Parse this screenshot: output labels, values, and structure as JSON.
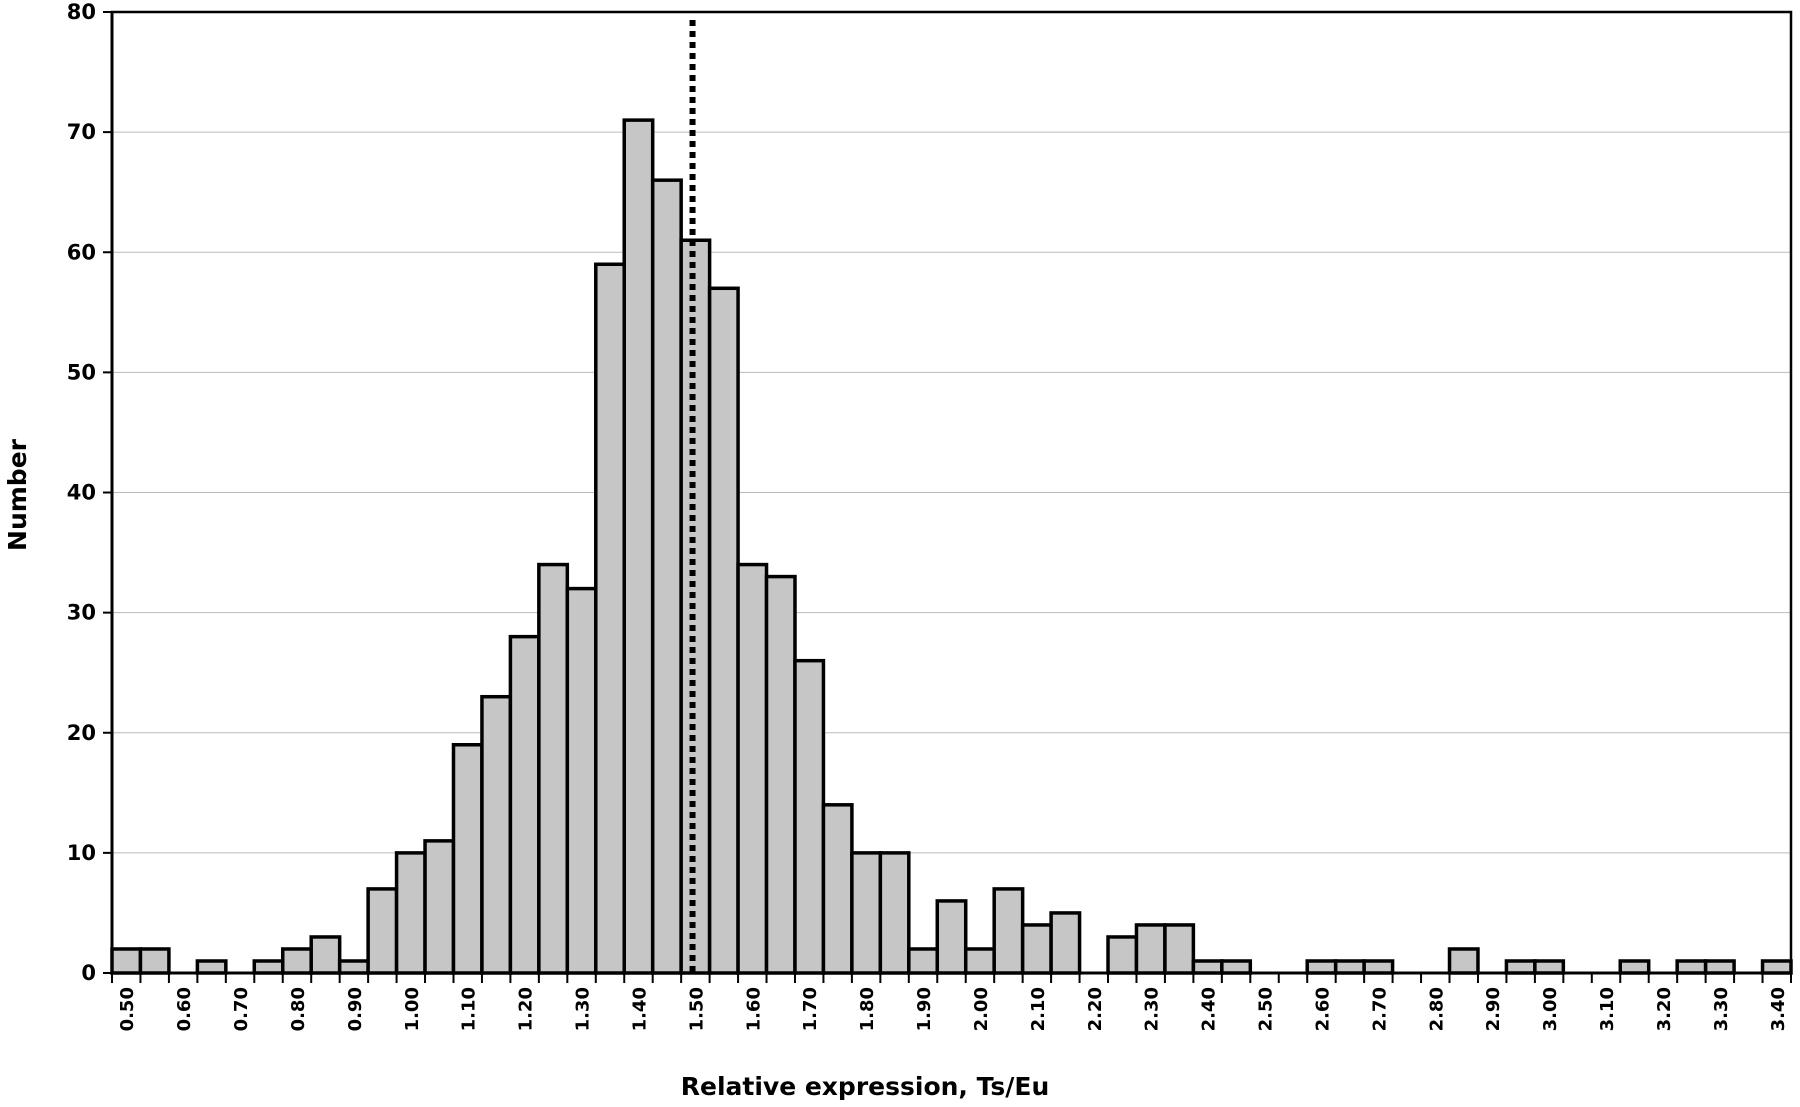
{
  "chart_data": {
    "type": "bar",
    "subtype": "histogram",
    "title": "",
    "xlabel": "Relative expression, Ts/Eu",
    "ylabel": "Number",
    "ylim": [
      0,
      80
    ],
    "xlim": [
      0.475,
      3.425
    ],
    "bin_width": 0.05,
    "grid": true,
    "legend": "none",
    "y_ticks": [
      "0",
      "10",
      "20",
      "30",
      "40",
      "50",
      "60",
      "70",
      "80"
    ],
    "x_ticks": [
      "0.50",
      "0.60",
      "0.70",
      "0.80",
      "0.90",
      "1.00",
      "1.10",
      "1.20",
      "1.30",
      "1.40",
      "1.50",
      "1.60",
      "1.70",
      "1.80",
      "1.90",
      "2.00",
      "2.10",
      "2.20",
      "2.30",
      "2.40",
      "2.50",
      "2.60",
      "2.70",
      "2.80",
      "2.90",
      "3.00",
      "3.10",
      "3.20",
      "3.30",
      "3.40"
    ],
    "bins": [
      0.5,
      0.55,
      0.6,
      0.65,
      0.7,
      0.75,
      0.8,
      0.85,
      0.9,
      0.95,
      1.0,
      1.05,
      1.1,
      1.15,
      1.2,
      1.25,
      1.3,
      1.35,
      1.4,
      1.45,
      1.5,
      1.55,
      1.6,
      1.65,
      1.7,
      1.75,
      1.8,
      1.85,
      1.9,
      1.95,
      2.0,
      2.05,
      2.1,
      2.15,
      2.2,
      2.25,
      2.3,
      2.35,
      2.4,
      2.45,
      2.5,
      2.55,
      2.6,
      2.65,
      2.7,
      2.75,
      2.8,
      2.85,
      2.9,
      2.95,
      3.0,
      3.05,
      3.1,
      3.15,
      3.2,
      3.25,
      3.3,
      3.35,
      3.4
    ],
    "values": [
      2,
      2,
      0,
      1,
      0,
      1,
      2,
      3,
      1,
      7,
      10,
      11,
      19,
      23,
      28,
      34,
      32,
      59,
      71,
      66,
      61,
      57,
      34,
      33,
      26,
      14,
      10,
      10,
      2,
      6,
      2,
      7,
      4,
      5,
      0,
      3,
      4,
      4,
      1,
      1,
      0,
      0,
      1,
      1,
      1,
      0,
      0,
      2,
      0,
      1,
      1,
      0,
      0,
      1,
      0,
      1,
      1,
      0,
      1
    ],
    "reference_line": {
      "x": 1.495,
      "style": "dotted"
    },
    "colors": {
      "bar_fill": "#c6c6c6",
      "bar_stroke": "#000000",
      "grid": "#bbbbbb",
      "reference_line": "#000000"
    }
  }
}
